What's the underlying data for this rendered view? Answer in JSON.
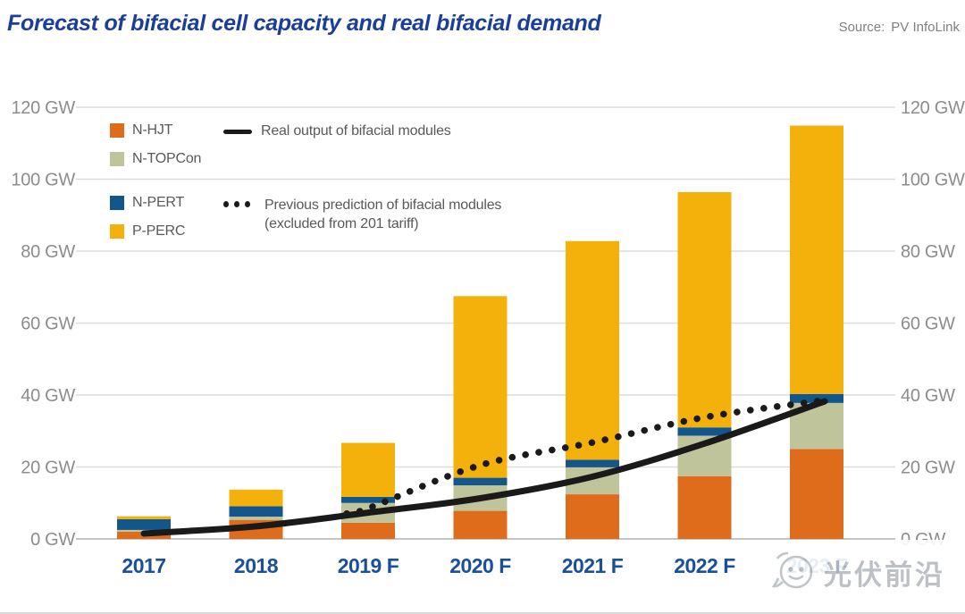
{
  "header": {
    "title": "Forecast of bifacial cell capacity and real bifacial demand",
    "source_label": "Source:",
    "source_value": "PV InfoLink"
  },
  "legend": {
    "series": [
      {
        "label": "N-HJT",
        "color": "#df6c1b"
      },
      {
        "label": "N-TOPCon",
        "color": "#c0c49b"
      },
      {
        "label": "N-PERT",
        "color": "#13568c"
      },
      {
        "label": "P-PERC",
        "color": "#f5b10b"
      }
    ],
    "lines": [
      {
        "label": "Real output of bifacial modules",
        "style": "solid"
      },
      {
        "label": "Previous prediction of bifacial modules",
        "label2": "(excluded from 201 tariff)",
        "style": "dotted"
      }
    ]
  },
  "axis": {
    "y_tick_labels": [
      "0 GW",
      "20 GW",
      "40 GW",
      "60 GW",
      "80 GW",
      "100 GW",
      "120 GW"
    ],
    "unit": "GW"
  },
  "watermark": {
    "text": "光伏前沿"
  },
  "chart_data": {
    "type": "bar",
    "stacked": true,
    "title": "Forecast of bifacial cell capacity and real bifacial demand",
    "categories": [
      "2017",
      "2018",
      "2019 F",
      "2020 F",
      "2021 F",
      "2022 F",
      "2023 F"
    ],
    "categories_note": "2023 F label is hidden behind watermark in the image",
    "series": [
      {
        "name": "N-HJT",
        "color": "#df6c1b",
        "values": [
          2.0,
          5.3,
          4.5,
          7.8,
          12.4,
          17.4,
          25.0
        ]
      },
      {
        "name": "N-TOPCon",
        "color": "#c0c49b",
        "values": [
          0.5,
          0.9,
          5.5,
          7.1,
          7.5,
          11.3,
          12.8
        ]
      },
      {
        "name": "N-PERT",
        "color": "#13568c",
        "values": [
          3.0,
          2.9,
          1.7,
          2.1,
          2.1,
          2.3,
          2.5
        ]
      },
      {
        "name": "P-PERC",
        "color": "#f5b10b",
        "values": [
          0.8,
          4.6,
          15.0,
          50.5,
          60.8,
          65.4,
          74.6
        ]
      }
    ],
    "totals": [
      6.3,
      13.7,
      26.7,
      67.5,
      82.8,
      96.4,
      114.9
    ],
    "line_series": [
      {
        "name": "Real output of bifacial modules",
        "style": "solid",
        "color": "#1a1a1a",
        "values": [
          1.5,
          3.5,
          7.3,
          11.3,
          17.3,
          26.5,
          38.0
        ]
      },
      {
        "name": "Previous prediction of bifacial modules (excluded from 201 tariff)",
        "style": "dotted",
        "color": "#1a1a1a",
        "values": [
          null,
          null,
          8.5,
          20.5,
          26.8,
          33.8,
          38.3
        ]
      }
    ],
    "ylim": [
      0,
      120
    ],
    "ytick_step": 20,
    "grid": true,
    "legend_position": "top-left",
    "dual_axis_labels": true
  }
}
